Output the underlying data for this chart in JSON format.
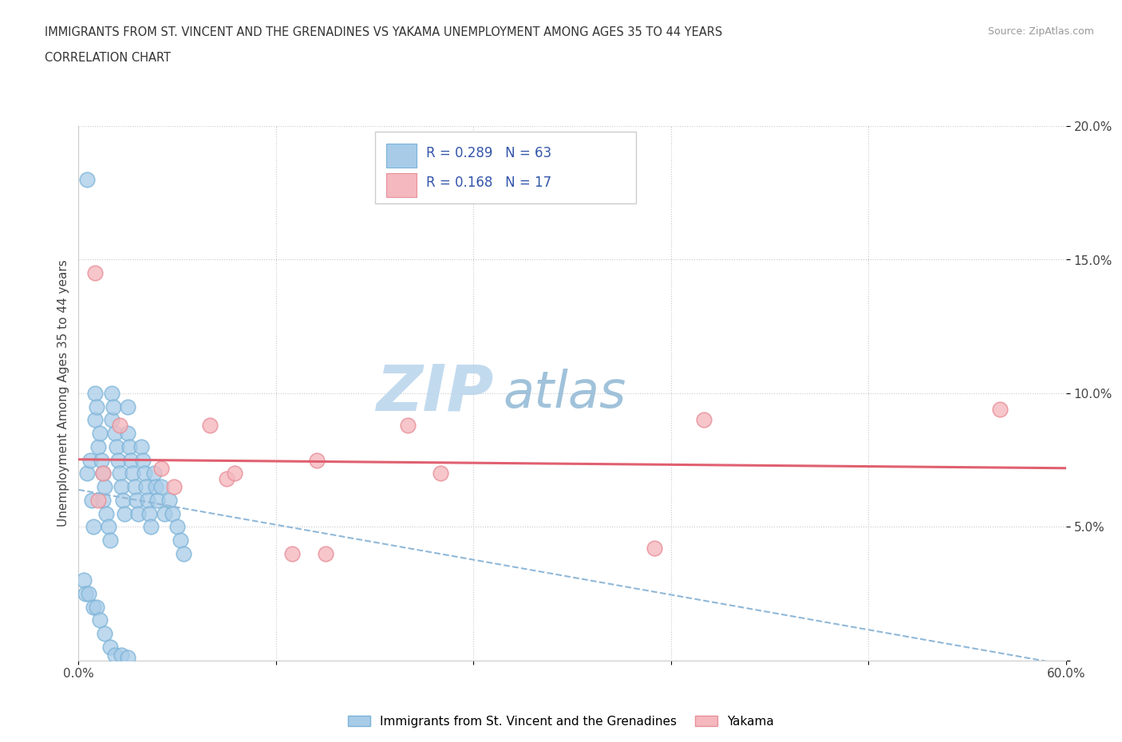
{
  "title_line1": "IMMIGRANTS FROM ST. VINCENT AND THE GRENADINES VS YAKAMA UNEMPLOYMENT AMONG AGES 35 TO 44 YEARS",
  "title_line2": "CORRELATION CHART",
  "source_text": "Source: ZipAtlas.com",
  "ylabel": "Unemployment Among Ages 35 to 44 years",
  "xlim": [
    0.0,
    0.6
  ],
  "ylim": [
    0.0,
    0.2
  ],
  "xticks": [
    0.0,
    0.12,
    0.24,
    0.36,
    0.48,
    0.6
  ],
  "xtick_labels_show": [
    "0.0%",
    "",
    "",
    "",
    "",
    "60.0%"
  ],
  "yticks": [
    0.0,
    0.05,
    0.1,
    0.15,
    0.2
  ],
  "ytick_labels": [
    "",
    "5.0%",
    "10.0%",
    "15.0%",
    "20.0%"
  ],
  "blue_R": 0.289,
  "blue_N": 63,
  "pink_R": 0.168,
  "pink_N": 17,
  "blue_color": "#a8cce8",
  "blue_edge_color": "#7ab3d8",
  "pink_color": "#f4b8be",
  "pink_edge_color": "#e8909a",
  "blue_trend_color": "#90b8d8",
  "pink_trend_color": "#e06070",
  "watermark_zip_color": "#b8d4ec",
  "watermark_atlas_color": "#90b8d4",
  "legend1_label": "Immigrants from St. Vincent and the Grenadines",
  "legend2_label": "Yakama",
  "stat_color": "#3355aa",
  "blue_x": [
    0.005,
    0.005,
    0.007,
    0.008,
    0.009,
    0.01,
    0.01,
    0.011,
    0.012,
    0.013,
    0.014,
    0.015,
    0.015,
    0.016,
    0.017,
    0.018,
    0.019,
    0.02,
    0.02,
    0.021,
    0.022,
    0.023,
    0.024,
    0.025,
    0.026,
    0.027,
    0.028,
    0.03,
    0.03,
    0.031,
    0.032,
    0.033,
    0.034,
    0.035,
    0.036,
    0.038,
    0.039,
    0.04,
    0.041,
    0.042,
    0.043,
    0.044,
    0.046,
    0.047,
    0.048,
    0.05,
    0.052,
    0.055,
    0.057,
    0.06,
    0.062,
    0.064,
    0.003,
    0.004,
    0.006,
    0.009,
    0.011,
    0.013,
    0.016,
    0.019,
    0.022,
    0.026,
    0.03
  ],
  "blue_y": [
    0.18,
    0.07,
    0.075,
    0.06,
    0.05,
    0.1,
    0.09,
    0.095,
    0.08,
    0.085,
    0.075,
    0.07,
    0.06,
    0.065,
    0.055,
    0.05,
    0.045,
    0.1,
    0.09,
    0.095,
    0.085,
    0.08,
    0.075,
    0.07,
    0.065,
    0.06,
    0.055,
    0.095,
    0.085,
    0.08,
    0.075,
    0.07,
    0.065,
    0.06,
    0.055,
    0.08,
    0.075,
    0.07,
    0.065,
    0.06,
    0.055,
    0.05,
    0.07,
    0.065,
    0.06,
    0.065,
    0.055,
    0.06,
    0.055,
    0.05,
    0.045,
    0.04,
    0.03,
    0.025,
    0.025,
    0.02,
    0.02,
    0.015,
    0.01,
    0.005,
    0.002,
    0.002,
    0.001
  ],
  "pink_x": [
    0.01,
    0.012,
    0.015,
    0.025,
    0.05,
    0.058,
    0.08,
    0.09,
    0.095,
    0.13,
    0.145,
    0.15,
    0.2,
    0.22,
    0.35,
    0.38,
    0.56
  ],
  "pink_y": [
    0.145,
    0.06,
    0.07,
    0.088,
    0.072,
    0.065,
    0.088,
    0.068,
    0.07,
    0.04,
    0.075,
    0.04,
    0.088,
    0.07,
    0.042,
    0.09,
    0.094
  ]
}
